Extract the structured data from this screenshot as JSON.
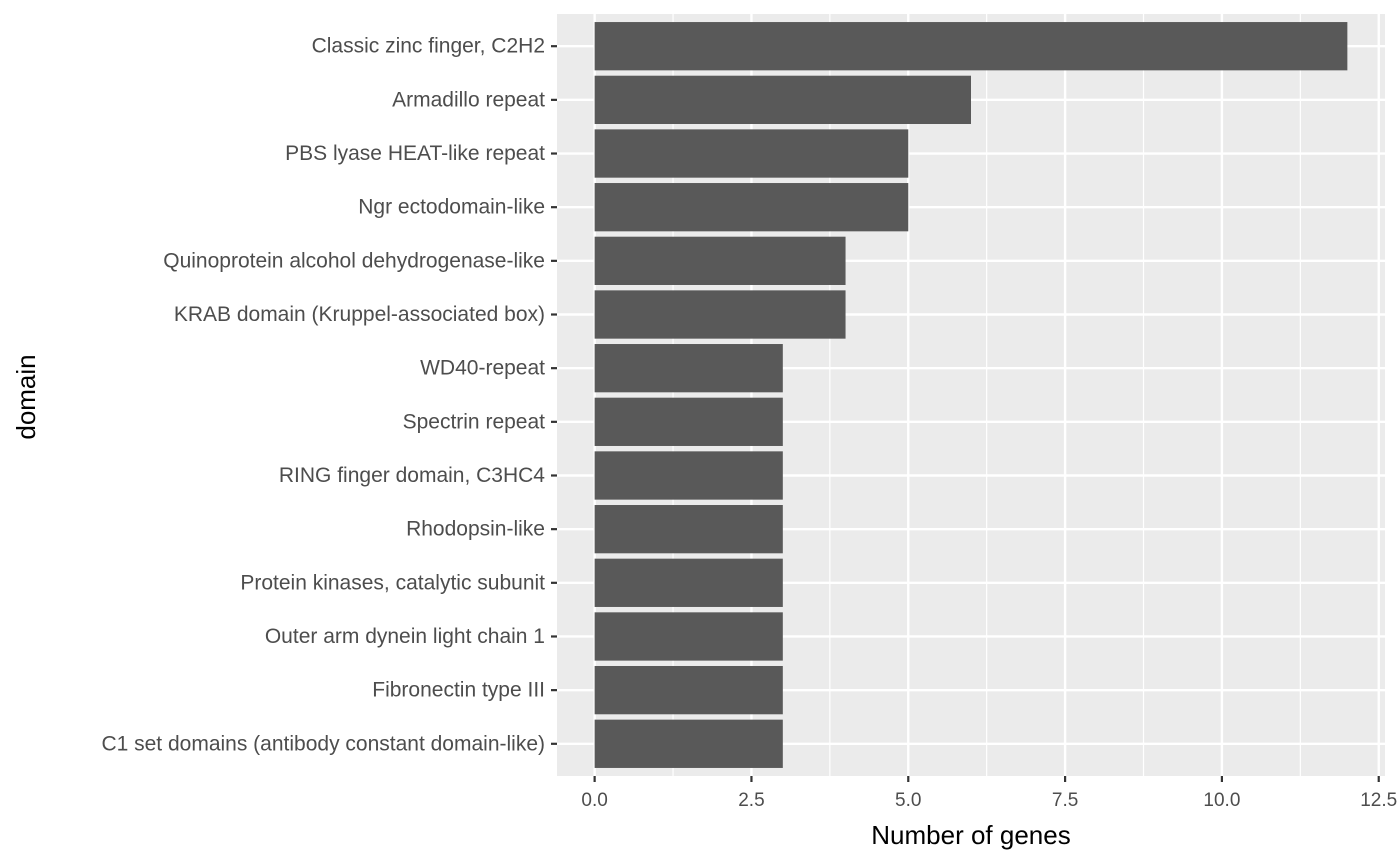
{
  "chart_data": {
    "type": "bar",
    "orientation": "horizontal",
    "categories": [
      "Classic zinc finger, C2H2",
      "Armadillo repeat",
      "PBS lyase HEAT-like repeat",
      "Ngr ectodomain-like",
      "Quinoprotein alcohol dehydrogenase-like",
      "KRAB domain (Kruppel-associated box)",
      "WD40-repeat",
      "Spectrin repeat",
      "RING finger domain, C3HC4",
      "Rhodopsin-like",
      "Protein kinases, catalytic subunit",
      "Outer arm dynein light chain 1",
      "Fibronectin type III",
      "C1 set domains (antibody constant domain-like)"
    ],
    "values": [
      12,
      6,
      5,
      5,
      4,
      4,
      3,
      3,
      3,
      3,
      3,
      3,
      3,
      3
    ],
    "xlabel": "Number of genes",
    "ylabel": "domain",
    "xlim": [
      -0.6,
      12.6
    ],
    "x_ticks": [
      0,
      2.5,
      5,
      7.5,
      10,
      12.5
    ],
    "x_tick_labels": [
      "0.0",
      "2.5",
      "5.0",
      "7.5",
      "10.0",
      "12.5"
    ],
    "grid": true,
    "colors": {
      "bar": "#595959",
      "panel": "#ebebeb",
      "grid": "#ffffff",
      "text": "#4d4d4d",
      "tick": "#333333"
    }
  }
}
